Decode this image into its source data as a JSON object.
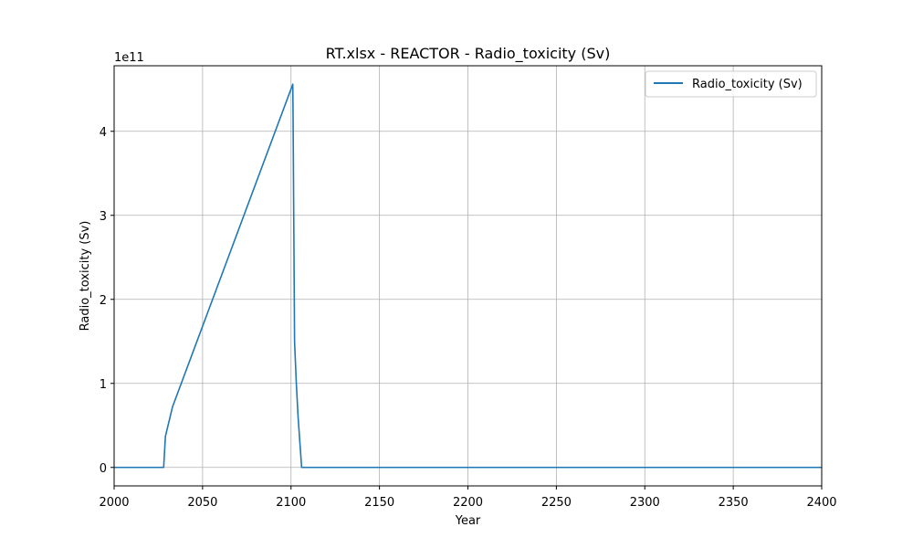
{
  "chart_data": {
    "type": "line",
    "title": "RT.xlsx - REACTOR - Radio_toxicity (Sv)",
    "xlabel": "Year",
    "ylabel": "Radio_toxicity (Sv)",
    "y_offset_text": "1e11",
    "y_scale_factor": 100000000000,
    "xlim": [
      2000,
      2400
    ],
    "ylim": [
      -0.22,
      4.78
    ],
    "x_ticks": [
      2000,
      2050,
      2100,
      2150,
      2200,
      2250,
      2300,
      2350,
      2400
    ],
    "x_tick_labels": [
      "2000",
      "2050",
      "2100",
      "2150",
      "2200",
      "2250",
      "2300",
      "2350",
      "2400"
    ],
    "y_ticks": [
      0,
      1,
      2,
      3,
      4
    ],
    "y_tick_labels": [
      "0",
      "1",
      "2",
      "3",
      "4"
    ],
    "grid": true,
    "legend_position": "top-right",
    "series": [
      {
        "name": "Radio_toxicity (Sv)",
        "color": "#1f77b4",
        "x": [
          2000,
          2028,
          2029,
          2033,
          2101,
          2101.2,
          2102,
          2103,
          2104,
          2105,
          2106,
          2400
        ],
        "y": [
          0,
          0,
          0.37,
          0.72,
          4.56,
          4.1,
          1.5,
          1.0,
          0.6,
          0.3,
          0,
          0
        ]
      }
    ]
  }
}
